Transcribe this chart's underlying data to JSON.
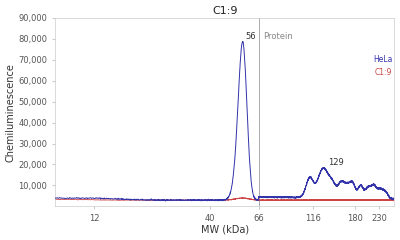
{
  "title": "C1:9",
  "xlabel": "MW (kDa)",
  "ylabel": "Chemiluminescence",
  "xlim_log": [
    0.9,
    2.42
  ],
  "ylim": [
    0,
    90000
  ],
  "yticks": [
    10000,
    20000,
    30000,
    40000,
    50000,
    60000,
    70000,
    80000,
    90000
  ],
  "ytick_labels": [
    "10,000",
    "20,000",
    "30,000",
    "40,000",
    "50,000",
    "60,000",
    "70,000",
    "80,000",
    "90,000"
  ],
  "xticks_kda": [
    12,
    40,
    66,
    116,
    180,
    230
  ],
  "peak1_kda": 56,
  "peak1_y": 78000,
  "peak1_label": "56",
  "peak2_kda": 129,
  "peak2_y": 18500,
  "peak2_label": "129",
  "protein_line_kda": 66,
  "protein_label": "Protein",
  "legend_line1": "HeLa",
  "legend_line2": "C1:9",
  "bg_color": "#ffffff",
  "blue_color": "#3333aa",
  "red_color": "#cc4444",
  "vline_color": "#aaaaaa",
  "title_fontsize": 8,
  "axis_fontsize": 7,
  "tick_fontsize": 6,
  "annotation_fontsize": 6
}
